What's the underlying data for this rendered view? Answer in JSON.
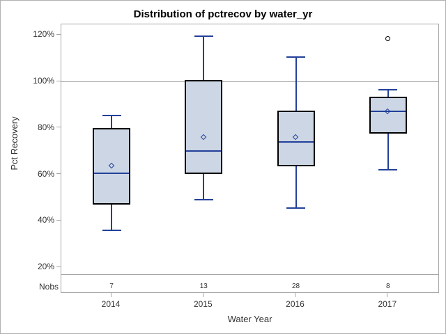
{
  "title": "Distribution of pctrecov by water_yr",
  "colors": {
    "box_fill": "#ccd6e4",
    "box_border": "#000000",
    "line": "#22409a",
    "reference_line": "#a0a0a0",
    "frame": "#a6a6a6",
    "outlier": "#000000",
    "text": "#333333",
    "page_border": "#b0b0b0"
  },
  "chart_data": {
    "type": "boxplot",
    "title": "Distribution of pctrecov by water_yr",
    "xlabel": "Water Year",
    "ylabel": "Pct Recovery",
    "categories": [
      "2014",
      "2015",
      "2016",
      "2017"
    ],
    "nobs_label": "Nobs",
    "nobs": [
      7,
      13,
      28,
      8
    ],
    "y_ticks": [
      {
        "value": 20,
        "label": "20%"
      },
      {
        "value": 40,
        "label": "40%"
      },
      {
        "value": 60,
        "label": "60%"
      },
      {
        "value": 80,
        "label": "80%"
      },
      {
        "value": 100,
        "label": "100%"
      },
      {
        "value": 120,
        "label": "120%"
      }
    ],
    "ylim": [
      17,
      124.6
    ],
    "reference_line": 100,
    "grid": false,
    "legend": "none",
    "series": [
      {
        "category": "2014",
        "n": 7,
        "whisker_low": 36,
        "q1": 47,
        "median": 60.5,
        "mean": 63.5,
        "q3": 80,
        "whisker_high": 85.5,
        "outliers": []
      },
      {
        "category": "2015",
        "n": 13,
        "whisker_low": 49,
        "q1": 60,
        "median": 70,
        "mean": 76,
        "q3": 100.5,
        "whisker_high": 119.5,
        "outliers": []
      },
      {
        "category": "2016",
        "n": 28,
        "whisker_low": 45.5,
        "q1": 63.5,
        "median": 74,
        "mean": 76,
        "q3": 87.5,
        "whisker_high": 110.5,
        "outliers": []
      },
      {
        "category": "2017",
        "n": 8,
        "whisker_low": 62,
        "q1": 77.5,
        "median": 87,
        "mean": 87,
        "q3": 93.5,
        "whisker_high": 96.5,
        "outliers": [
          118.5
        ]
      }
    ]
  }
}
